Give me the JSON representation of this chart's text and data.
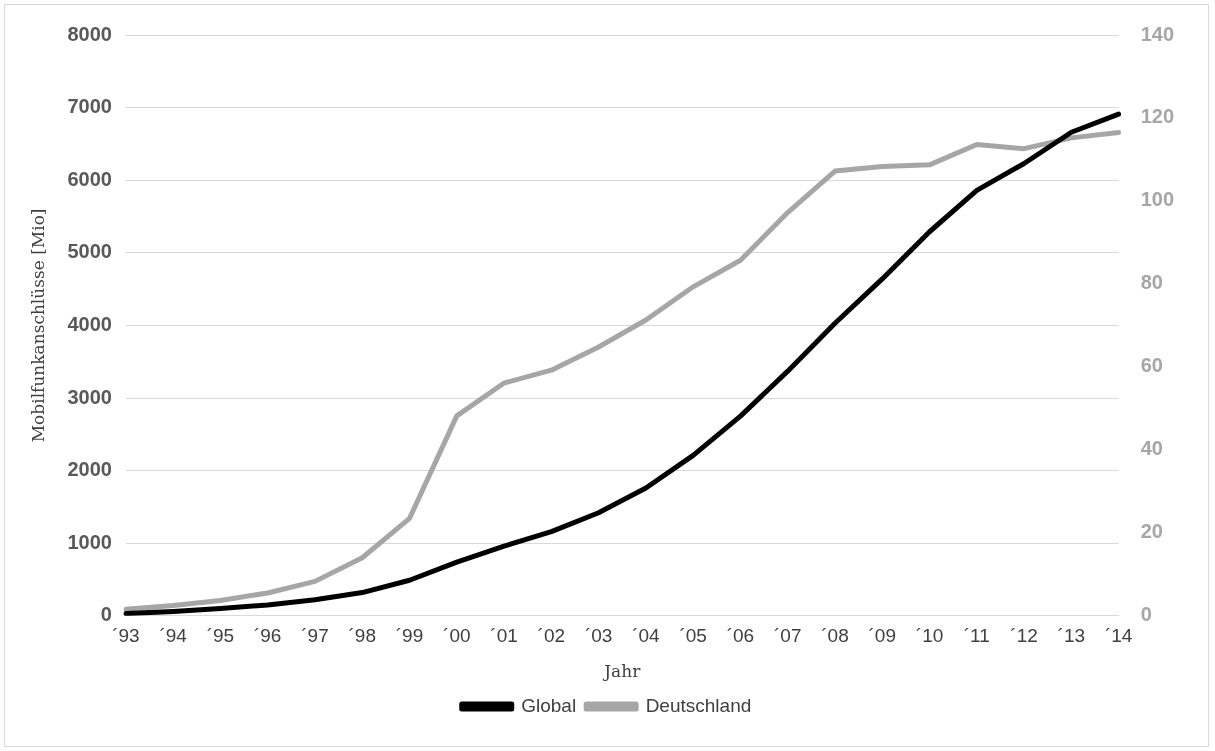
{
  "chart_data": {
    "type": "line",
    "xlabel": "Jahr",
    "ylabel": "Mobilfunkanschlüsse [Mio]",
    "categories": [
      "´93",
      "´94",
      "´95",
      "´96",
      "´97",
      "´98",
      "´99",
      "´00",
      "´01",
      "´02",
      "´03",
      "´04",
      "´05",
      "´06",
      "´07",
      "´08",
      "´09",
      "´10",
      "´11",
      "´12",
      "´13",
      "´14"
    ],
    "series": [
      {
        "name": "Global",
        "color": "#000000",
        "values": [
          30,
          60,
          100,
          150,
          220,
          320,
          490,
          740,
          960,
          1160,
          1420,
          1760,
          2210,
          2750,
          3370,
          4030,
          4640,
          5290,
          5860,
          6230,
          6660,
          6910
        ]
      },
      {
        "name": "Deutschland",
        "color": "#a6a6a6",
        "axis": "y2",
        "values": [
          1.6,
          2.5,
          3.7,
          5.5,
          8.3,
          14,
          23.5,
          48.2,
          56.1,
          59.2,
          64.8,
          71.3,
          79.3,
          85.7,
          97.2,
          107.2,
          108.3,
          108.7,
          113.6,
          112.6,
          115.2,
          116.5
        ]
      }
    ],
    "ylim": [
      0,
      8000
    ],
    "yticks": [
      0,
      1000,
      2000,
      3000,
      4000,
      5000,
      6000,
      7000,
      8000
    ],
    "y2lim": [
      0,
      140
    ],
    "y2ticks": [
      0,
      20,
      40,
      60,
      80,
      100,
      120,
      140
    ],
    "grid": "y",
    "legend": "bottom",
    "marker": "none",
    "line_style": "solid"
  }
}
